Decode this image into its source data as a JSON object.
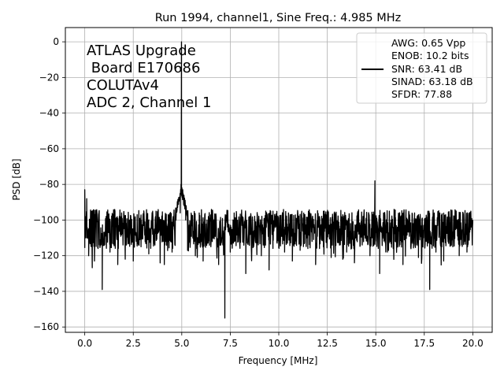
{
  "chart_data": {
    "type": "line",
    "title": "Run 1994, channel1, Sine Freq.: 4.985 MHz",
    "xlabel": "Frequency [MHz]",
    "ylabel": "PSD [dB]",
    "xlim": [
      -1.0,
      21.0
    ],
    "ylim": [
      -163,
      8
    ],
    "xticks": [
      0.0,
      2.5,
      5.0,
      7.5,
      10.0,
      12.5,
      15.0,
      17.5,
      20.0
    ],
    "xtick_labels": [
      "0.0",
      "2.5",
      "5.0",
      "7.5",
      "10.0",
      "12.5",
      "15.0",
      "17.5",
      "20.0"
    ],
    "yticks": [
      0,
      -20,
      -40,
      -60,
      -80,
      -100,
      -120,
      -140,
      -160
    ],
    "ytick_labels": [
      "0",
      "−20",
      "−40",
      "−60",
      "−80",
      "−100",
      "−120",
      "−140",
      "−160"
    ],
    "grid": true,
    "line_color": "#000000",
    "annotation_lines": [
      "ATLAS Upgrade",
      " Board E170686",
      "COLUTAv4",
      "ADC 2, Channel 1"
    ],
    "legend": {
      "placement": "top-right",
      "lines": [
        "AWG: 0.65 Vpp",
        "ENOB: 10.2 bits",
        "SNR: 63.41 dB",
        "SINAD: 63.18 dB",
        "SFDR: 77.88"
      ]
    },
    "noise_floor_approx_db": -105,
    "series": [
      {
        "values_note": "",
        "x": [
          0.0,
          0.05,
          0.1,
          0.2,
          0.35,
          0.5,
          0.7,
          0.9,
          1.1,
          1.3,
          1.5,
          1.7,
          1.9,
          2.1,
          2.3,
          2.5,
          2.7,
          2.9,
          3.1,
          3.3,
          3.5,
          3.7,
          3.9,
          4.1,
          4.3,
          4.5,
          4.7,
          4.85,
          4.92,
          4.96,
          4.985,
          5.01,
          5.05,
          5.12,
          5.2,
          5.3,
          5.5,
          5.7,
          5.9,
          6.1,
          6.3,
          6.5,
          6.7,
          6.9,
          7.1,
          7.22,
          7.35,
          7.5,
          7.7,
          7.9,
          8.1,
          8.3,
          8.5,
          8.7,
          8.9,
          9.1,
          9.3,
          9.5,
          9.7,
          9.9,
          10.1,
          10.3,
          10.5,
          10.7,
          10.9,
          11.1,
          11.3,
          11.5,
          11.7,
          11.9,
          12.1,
          12.3,
          12.5,
          12.7,
          12.9,
          13.1,
          13.3,
          13.5,
          13.7,
          13.9,
          14.1,
          14.3,
          14.5,
          14.7,
          14.85,
          14.955,
          15.05,
          15.2,
          15.4,
          15.6,
          15.8,
          16.0,
          16.2,
          16.4,
          16.6,
          16.8,
          17.0,
          17.2,
          17.4,
          17.6,
          17.78,
          17.95,
          18.1,
          18.3,
          18.5,
          18.7,
          18.9,
          19.1,
          19.3,
          19.5,
          19.7,
          19.9,
          20.0
        ],
        "y": [
          -83,
          -110,
          -88,
          -120,
          -95,
          -123,
          -100,
          -139,
          -98,
          -118,
          -102,
          -125,
          -96,
          -112,
          -100,
          -123,
          -97,
          -115,
          -101,
          -119,
          -95,
          -110,
          -103,
          -125,
          -97,
          -118,
          -100,
          -88,
          -96,
          -80,
          0,
          -82,
          -83,
          -90,
          -100,
          -117,
          -97,
          -120,
          -96,
          -123,
          -100,
          -115,
          -98,
          -125,
          -102,
          -155,
          -98,
          -118,
          -96,
          -112,
          -103,
          -130,
          -98,
          -115,
          -97,
          -120,
          -102,
          -128,
          -95,
          -112,
          -101,
          -118,
          -96,
          -123,
          -99,
          -117,
          -97,
          -110,
          -103,
          -125,
          -98,
          -115,
          -96,
          -121,
          -100,
          -112,
          -97,
          -118,
          -102,
          -124,
          -96,
          -114,
          -99,
          -120,
          -97,
          -78,
          -99,
          -130,
          -96,
          -118,
          -100,
          -112,
          -97,
          -125,
          -99,
          -115,
          -96,
          -121,
          -102,
          -112,
          -139,
          -97,
          -118,
          -96,
          -123,
          -100,
          -112,
          -97,
          -120,
          -96,
          -118,
          -95,
          -100
        ]
      }
    ]
  }
}
